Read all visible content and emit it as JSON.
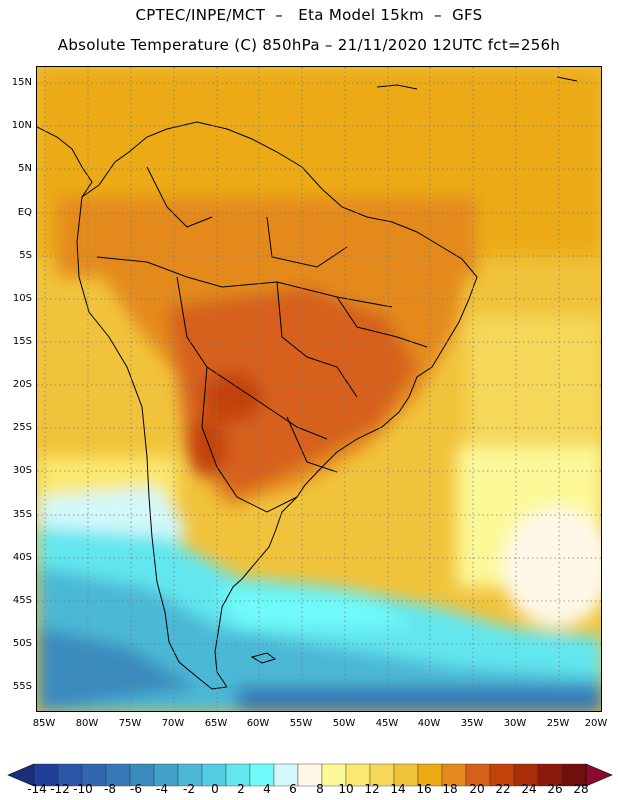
{
  "header": {
    "title_line1": "CPTEC/INPE/MCT  –   Eta Model 15km  –  GFS",
    "title_line2": "Absolute Temperature (C) 850hPa – 21/11/2020 12UTC fct=256h"
  },
  "map": {
    "lat_labels": [
      "15N",
      "10N",
      "5N",
      "EQ",
      "5S",
      "10S",
      "15S",
      "20S",
      "25S",
      "30S",
      "35S",
      "40S",
      "45S",
      "50S",
      "55S"
    ],
    "lon_labels": [
      "85W",
      "80W",
      "75W",
      "70W",
      "65W",
      "60W",
      "55W",
      "50W",
      "45W",
      "40W",
      "35W",
      "30W",
      "25W",
      "20W"
    ],
    "grid": "dotted"
  },
  "colorbar": {
    "labels": [
      "-14",
      "-12",
      "-10",
      "-8",
      "-6",
      "-4",
      "-2",
      "0",
      "2",
      "4",
      "6",
      "8",
      "10",
      "12",
      "14",
      "16",
      "18",
      "20",
      "22",
      "24",
      "26",
      "28"
    ],
    "colors": [
      "#1e3f96",
      "#2a56a6",
      "#3067ae",
      "#3678b6",
      "#3a8bbe",
      "#42a2c8",
      "#4cb8d6",
      "#52cde4",
      "#62e6ef",
      "#6ffafa",
      "#d2f8fa",
      "#fff8e8",
      "#fcf898",
      "#fbe870",
      "#f5d85a",
      "#f1c33c",
      "#ecab14",
      "#e48a1c",
      "#d6601a",
      "#c2420c",
      "#a82e08",
      "#8c1a0a",
      "#70100c"
    ],
    "under_color": "#1a2f7a",
    "over_color": "#8a0a2e"
  }
}
